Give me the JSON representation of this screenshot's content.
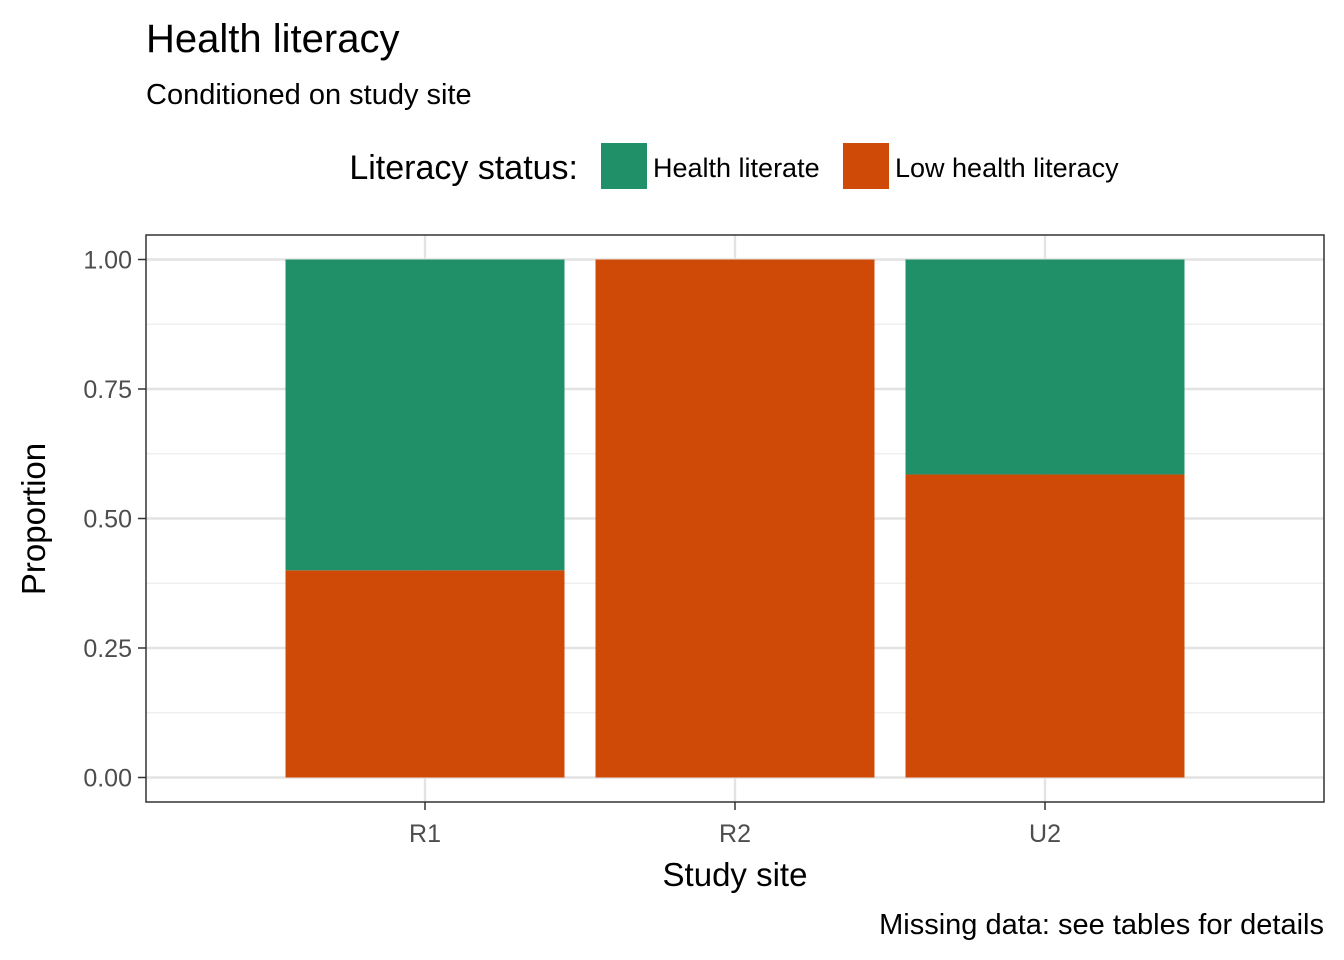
{
  "chart_data": {
    "type": "bar",
    "stacked": true,
    "title": "Health literacy",
    "subtitle": "Conditioned on study site",
    "xlabel": "Study site",
    "ylabel": "Proportion",
    "caption": "Missing data: see tables for details",
    "categories": [
      "R1",
      "R2",
      "U2"
    ],
    "y_ticks": [
      "0.00",
      "0.25",
      "0.50",
      "0.75",
      "1.00"
    ],
    "ylim": [
      0,
      1
    ],
    "grid": true,
    "legend": {
      "title": "Literacy status:",
      "position": "top"
    },
    "series": [
      {
        "name": "Low health literacy",
        "color": "#D04A07",
        "values": [
          0.4,
          1.0,
          0.585
        ]
      },
      {
        "name": "Health literate",
        "color": "#1F9068",
        "values": [
          0.6,
          0.0,
          0.415
        ]
      }
    ]
  }
}
